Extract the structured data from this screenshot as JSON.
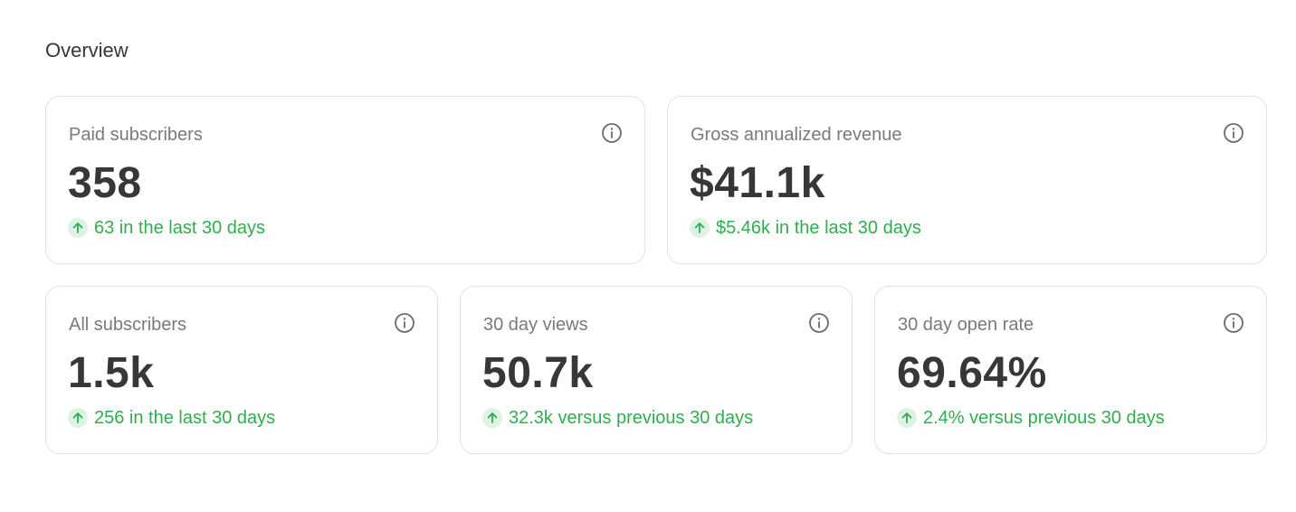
{
  "overview": {
    "title": "Overview"
  },
  "colors": {
    "positive": "#2fae4f",
    "positive_bg": "#dff3e4",
    "value_text": "#363737",
    "label_text": "#7a7a7a",
    "card_border": "#e2e2e2"
  },
  "cards": [
    {
      "label": "Paid subscribers",
      "value": "358",
      "trend": "63 in the last 30 days",
      "trend_direction": "up",
      "info_icon": "info-icon"
    },
    {
      "label": "Gross annualized revenue",
      "value": "$41.1k",
      "trend": "$5.46k in the last 30 days",
      "trend_direction": "up",
      "info_icon": "info-icon"
    },
    {
      "label": "All subscribers",
      "value": "1.5k",
      "trend": "256 in the last 30 days",
      "trend_direction": "up",
      "info_icon": "info-icon"
    },
    {
      "label": "30 day views",
      "value": "50.7k",
      "trend": "32.3k versus previous 30 days",
      "trend_direction": "up",
      "info_icon": "info-icon"
    },
    {
      "label": "30 day open rate",
      "value": "69.64%",
      "trend": "2.4% versus previous 30 days",
      "trend_direction": "up",
      "info_icon": "info-icon"
    }
  ]
}
